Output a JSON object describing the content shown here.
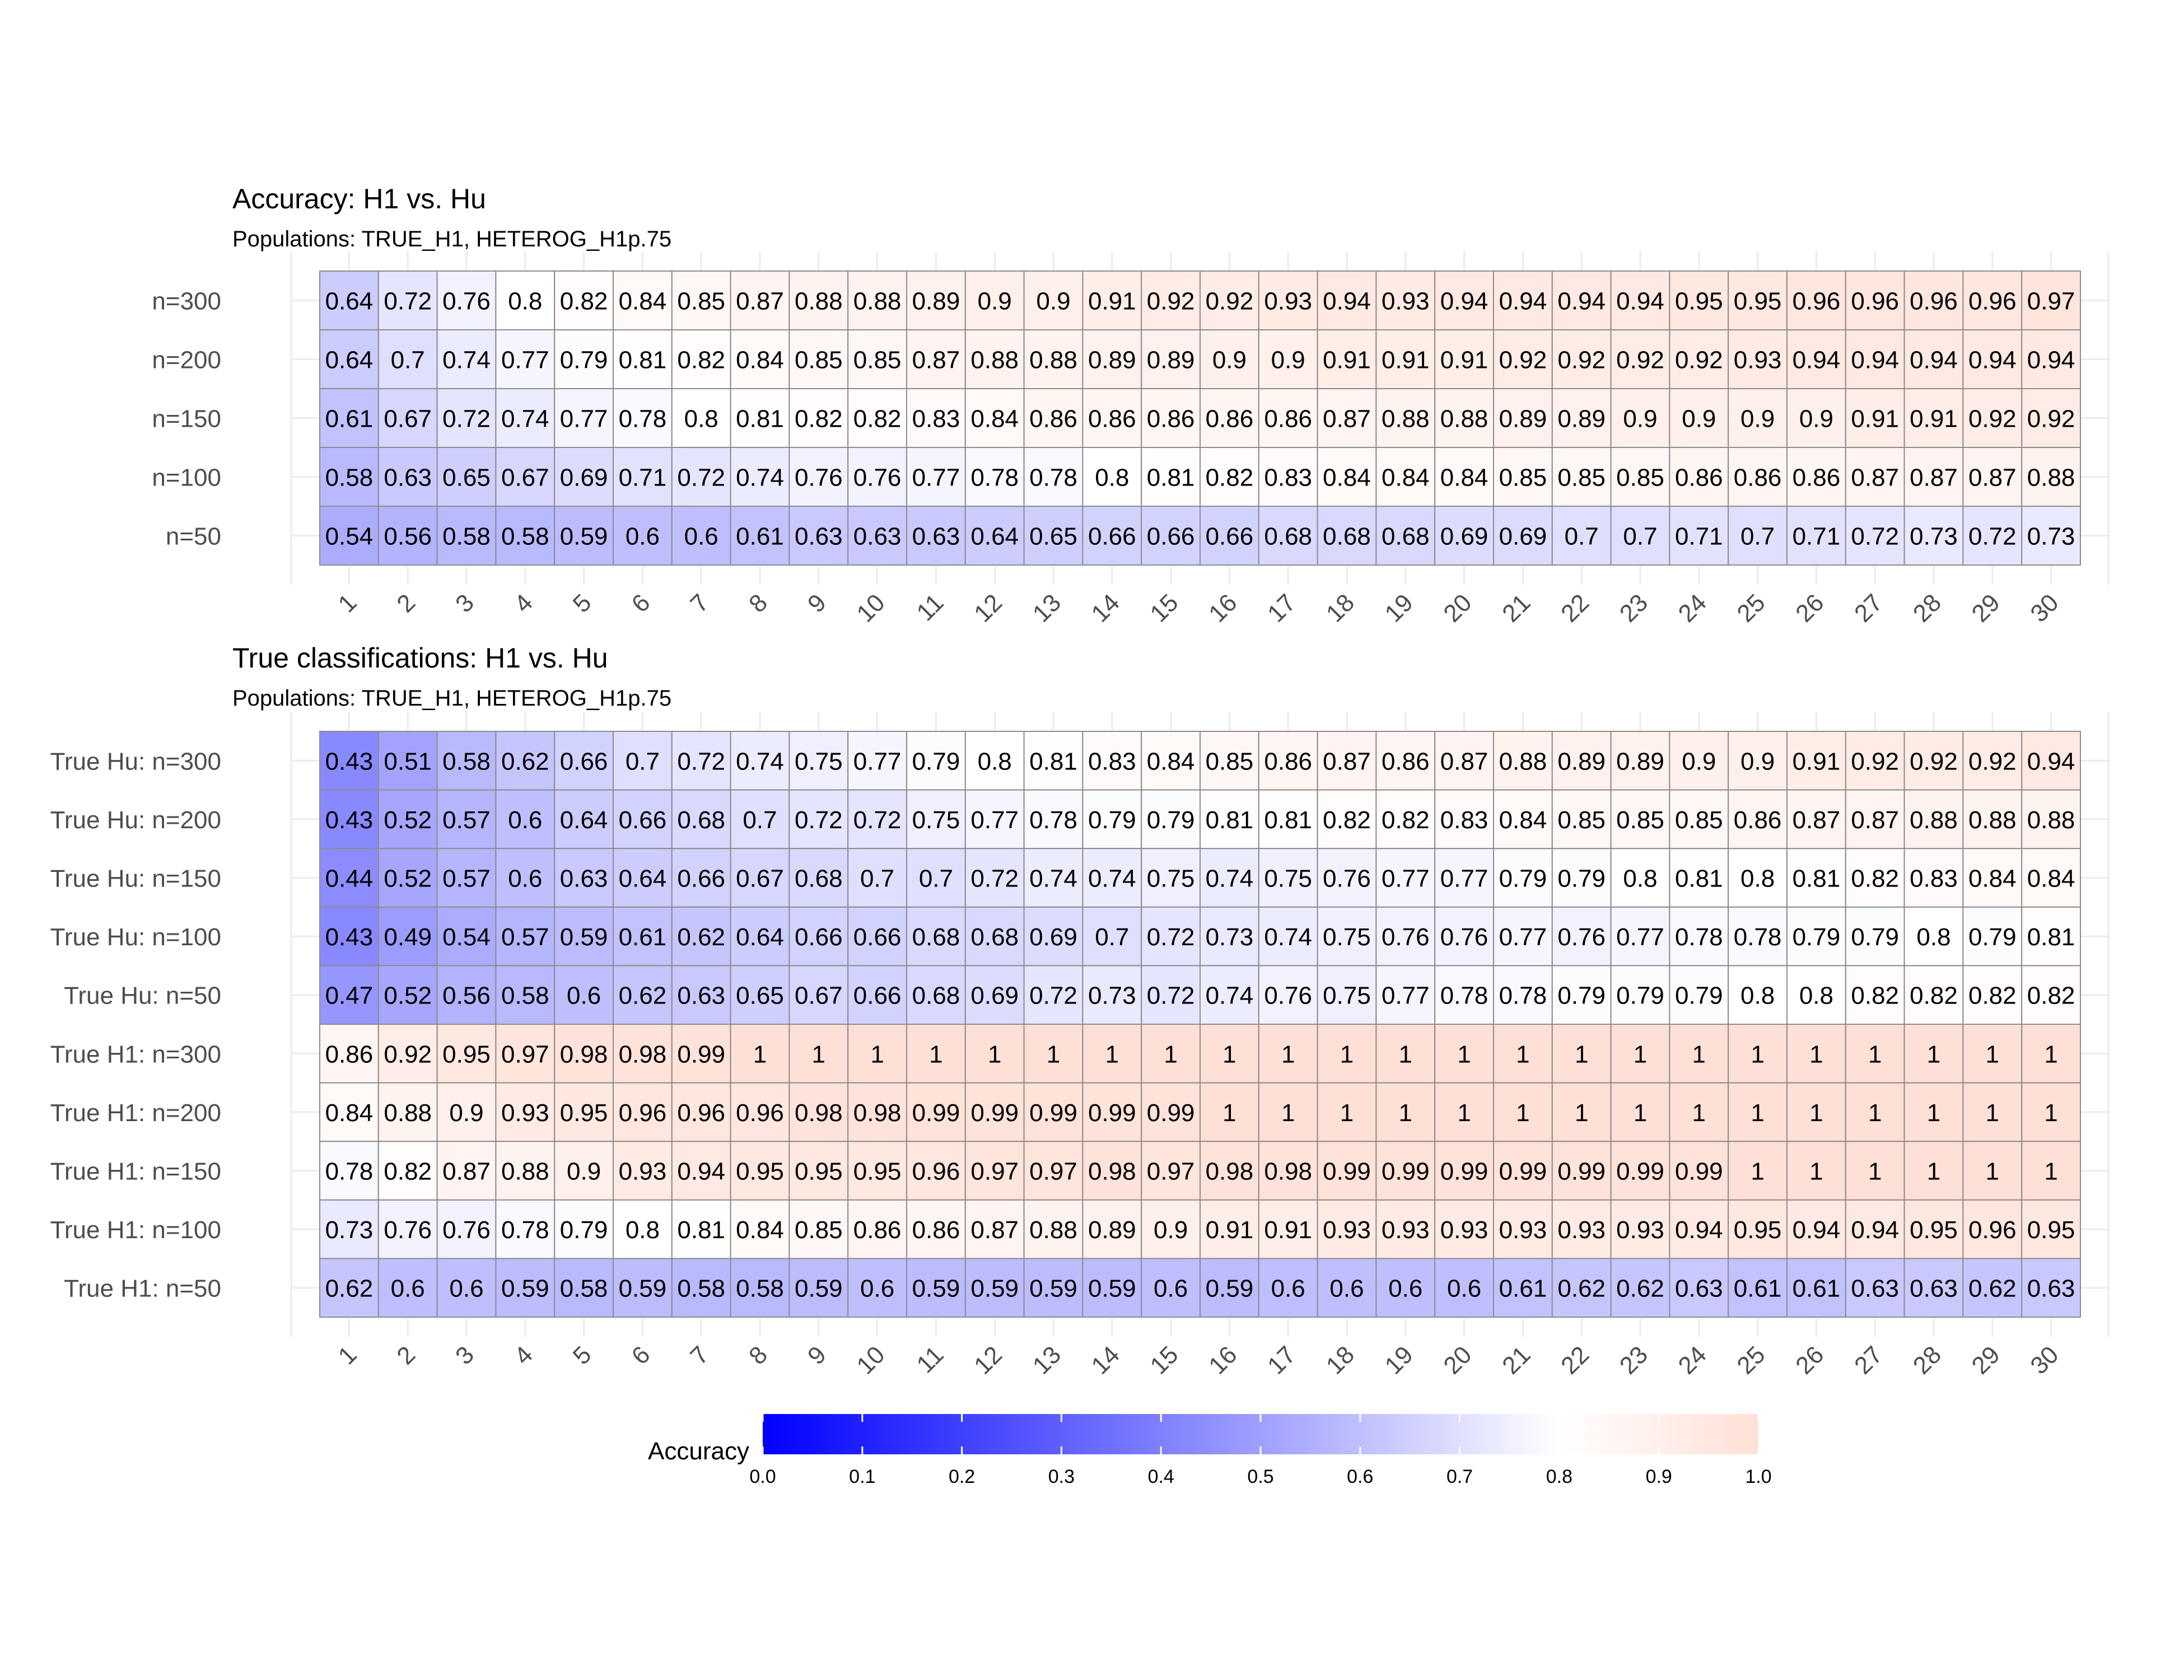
{
  "chart_data": [
    {
      "type": "heatmap",
      "title": "Accuracy: H1 vs. Hu",
      "subtitle": "Populations: TRUE_H1, HETEROG_H1p.75",
      "x": [
        "1",
        "2",
        "3",
        "4",
        "5",
        "6",
        "7",
        "8",
        "9",
        "10",
        "11",
        "12",
        "13",
        "14",
        "15",
        "16",
        "17",
        "18",
        "19",
        "20",
        "21",
        "22",
        "23",
        "24",
        "25",
        "26",
        "27",
        "28",
        "29",
        "30"
      ],
      "y": [
        "n=300",
        "n=200",
        "n=150",
        "n=100",
        "n=50"
      ],
      "values": [
        [
          0.64,
          0.72,
          0.76,
          0.8,
          0.82,
          0.84,
          0.85,
          0.87,
          0.88,
          0.88,
          0.89,
          0.9,
          0.9,
          0.91,
          0.92,
          0.92,
          0.93,
          0.94,
          0.93,
          0.94,
          0.94,
          0.94,
          0.94,
          0.95,
          0.95,
          0.96,
          0.96,
          0.96,
          0.96,
          0.97
        ],
        [
          0.64,
          0.7,
          0.74,
          0.77,
          0.79,
          0.81,
          0.82,
          0.84,
          0.85,
          0.85,
          0.87,
          0.88,
          0.88,
          0.89,
          0.89,
          0.9,
          0.9,
          0.91,
          0.91,
          0.91,
          0.92,
          0.92,
          0.92,
          0.92,
          0.93,
          0.94,
          0.94,
          0.94,
          0.94,
          0.94
        ],
        [
          0.61,
          0.67,
          0.72,
          0.74,
          0.77,
          0.78,
          0.8,
          0.81,
          0.82,
          0.82,
          0.83,
          0.84,
          0.86,
          0.86,
          0.86,
          0.86,
          0.86,
          0.87,
          0.88,
          0.88,
          0.89,
          0.89,
          0.9,
          0.9,
          0.9,
          0.9,
          0.91,
          0.91,
          0.92,
          0.92
        ],
        [
          0.58,
          0.63,
          0.65,
          0.67,
          0.69,
          0.71,
          0.72,
          0.74,
          0.76,
          0.76,
          0.77,
          0.78,
          0.78,
          0.8,
          0.81,
          0.82,
          0.83,
          0.84,
          0.84,
          0.84,
          0.85,
          0.85,
          0.85,
          0.86,
          0.86,
          0.86,
          0.87,
          0.87,
          0.87,
          0.88
        ],
        [
          0.54,
          0.56,
          0.58,
          0.58,
          0.59,
          0.6,
          0.6,
          0.61,
          0.63,
          0.63,
          0.63,
          0.64,
          0.65,
          0.66,
          0.66,
          0.66,
          0.68,
          0.68,
          0.68,
          0.69,
          0.69,
          0.7,
          0.7,
          0.71,
          0.7,
          0.71,
          0.72,
          0.73,
          0.72,
          0.73
        ]
      ]
    },
    {
      "type": "heatmap",
      "title": "True classifications: H1  vs. Hu",
      "subtitle": "Populations: TRUE_H1, HETEROG_H1p.75",
      "x": [
        "1",
        "2",
        "3",
        "4",
        "5",
        "6",
        "7",
        "8",
        "9",
        "10",
        "11",
        "12",
        "13",
        "14",
        "15",
        "16",
        "17",
        "18",
        "19",
        "20",
        "21",
        "22",
        "23",
        "24",
        "25",
        "26",
        "27",
        "28",
        "29",
        "30"
      ],
      "y": [
        "True Hu: n=300",
        "True Hu: n=200",
        "True Hu: n=150",
        "True Hu: n=100",
        "True Hu: n=50",
        "True H1: n=300",
        "True H1: n=200",
        "True H1: n=150",
        "True H1: n=100",
        "True H1: n=50"
      ],
      "values": [
        [
          0.43,
          0.51,
          0.58,
          0.62,
          0.66,
          0.7,
          0.72,
          0.74,
          0.75,
          0.77,
          0.79,
          0.8,
          0.81,
          0.83,
          0.84,
          0.85,
          0.86,
          0.87,
          0.86,
          0.87,
          0.88,
          0.89,
          0.89,
          0.9,
          0.9,
          0.91,
          0.92,
          0.92,
          0.92,
          0.94
        ],
        [
          0.43,
          0.52,
          0.57,
          0.6,
          0.64,
          0.66,
          0.68,
          0.7,
          0.72,
          0.72,
          0.75,
          0.77,
          0.78,
          0.79,
          0.79,
          0.81,
          0.81,
          0.82,
          0.82,
          0.83,
          0.84,
          0.85,
          0.85,
          0.85,
          0.86,
          0.87,
          0.87,
          0.88,
          0.88,
          0.88
        ],
        [
          0.44,
          0.52,
          0.57,
          0.6,
          0.63,
          0.64,
          0.66,
          0.67,
          0.68,
          0.7,
          0.7,
          0.72,
          0.74,
          0.74,
          0.75,
          0.74,
          0.75,
          0.76,
          0.77,
          0.77,
          0.79,
          0.79,
          0.8,
          0.81,
          0.8,
          0.81,
          0.82,
          0.83,
          0.84,
          0.84
        ],
        [
          0.43,
          0.49,
          0.54,
          0.57,
          0.59,
          0.61,
          0.62,
          0.64,
          0.66,
          0.66,
          0.68,
          0.68,
          0.69,
          0.7,
          0.72,
          0.73,
          0.74,
          0.75,
          0.76,
          0.76,
          0.77,
          0.76,
          0.77,
          0.78,
          0.78,
          0.79,
          0.79,
          0.8,
          0.79,
          0.81
        ],
        [
          0.47,
          0.52,
          0.56,
          0.58,
          0.6,
          0.62,
          0.63,
          0.65,
          0.67,
          0.66,
          0.68,
          0.69,
          0.72,
          0.73,
          0.72,
          0.74,
          0.76,
          0.75,
          0.77,
          0.78,
          0.78,
          0.79,
          0.79,
          0.79,
          0.8,
          0.8,
          0.82,
          0.82,
          0.82,
          0.82
        ],
        [
          0.86,
          0.92,
          0.95,
          0.97,
          0.98,
          0.98,
          0.99,
          1,
          1,
          1,
          1,
          1,
          1,
          1,
          1,
          1,
          1,
          1,
          1,
          1,
          1,
          1,
          1,
          1,
          1,
          1,
          1,
          1,
          1,
          1
        ],
        [
          0.84,
          0.88,
          0.9,
          0.93,
          0.95,
          0.96,
          0.96,
          0.96,
          0.98,
          0.98,
          0.99,
          0.99,
          0.99,
          0.99,
          0.99,
          1,
          1,
          1,
          1,
          1,
          1,
          1,
          1,
          1,
          1,
          1,
          1,
          1,
          1,
          1
        ],
        [
          0.78,
          0.82,
          0.87,
          0.88,
          0.9,
          0.93,
          0.94,
          0.95,
          0.95,
          0.95,
          0.96,
          0.97,
          0.97,
          0.98,
          0.97,
          0.98,
          0.98,
          0.99,
          0.99,
          0.99,
          0.99,
          0.99,
          0.99,
          0.99,
          1,
          1,
          1,
          1,
          1,
          1
        ],
        [
          0.73,
          0.76,
          0.76,
          0.78,
          0.79,
          0.8,
          0.81,
          0.84,
          0.85,
          0.86,
          0.86,
          0.87,
          0.88,
          0.89,
          0.9,
          0.91,
          0.91,
          0.93,
          0.93,
          0.93,
          0.93,
          0.93,
          0.93,
          0.94,
          0.95,
          0.94,
          0.94,
          0.95,
          0.96,
          0.95
        ],
        [
          0.62,
          0.6,
          0.6,
          0.59,
          0.58,
          0.59,
          0.58,
          0.58,
          0.59,
          0.6,
          0.59,
          0.59,
          0.59,
          0.59,
          0.6,
          0.59,
          0.6,
          0.6,
          0.6,
          0.6,
          0.61,
          0.62,
          0.62,
          0.63,
          0.61,
          0.61,
          0.63,
          0.63,
          0.62,
          0.63
        ]
      ]
    }
  ],
  "legend": {
    "title": "Accuracy",
    "ticks": [
      "0.0",
      "0.1",
      "0.2",
      "0.3",
      "0.4",
      "0.5",
      "0.6",
      "0.7",
      "0.8",
      "0.9",
      "1.0"
    ],
    "range": [
      0,
      1
    ],
    "placement": "bottom",
    "colors": {
      "low": "#0000ff",
      "mid": "#ffffff",
      "high": "#ffe0d6",
      "midpoint": 0.8
    }
  },
  "style": {
    "grid_color": "#ebebeb",
    "cell_border": "#8c8c8c",
    "axis_text_color": "#4d4d4d",
    "title_color": "#000000"
  }
}
